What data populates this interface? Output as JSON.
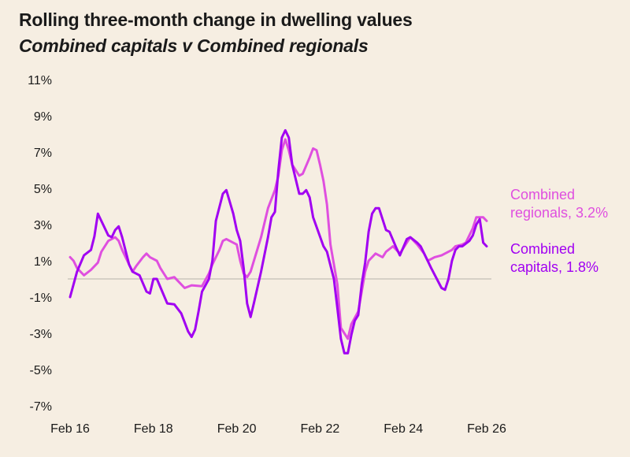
{
  "chart_data": {
    "type": "line",
    "title": "Rolling three-month change in dwelling values",
    "subtitle": "Combined capitals v Combined regionals",
    "xlabel": "",
    "ylabel": "",
    "ylim": [
      -7,
      11
    ],
    "xlim": [
      "2016-02",
      "2026-02"
    ],
    "y_ticks": [
      "11%",
      "9%",
      "7%",
      "5%",
      "3%",
      "1%",
      "-1%",
      "-3%",
      "-5%",
      "-7%"
    ],
    "y_tick_values": [
      11,
      9,
      7,
      5,
      3,
      1,
      -1,
      -3,
      -5,
      -7
    ],
    "x_ticks": [
      "Feb 16",
      "Feb 18",
      "Feb 20",
      "Feb 22",
      "Feb 24",
      "Feb 26"
    ],
    "x_tick_values": [
      "2016-02",
      "2018-02",
      "2020-02",
      "2022-02",
      "2024-02",
      "2026-02"
    ],
    "zero_line": true,
    "grid": false,
    "legend_placement": "right (direct labels)",
    "series": [
      {
        "name": "Combined regionals",
        "label_line1": "Combined",
        "label_line2": "regionals, 3.2%",
        "color": "#df4fdf",
        "points": [
          [
            "2016-02",
            1.2
          ],
          [
            "2016-03",
            1.0
          ],
          [
            "2016-04",
            0.6
          ],
          [
            "2016-06",
            0.2
          ],
          [
            "2016-08",
            0.5
          ],
          [
            "2016-10",
            0.9
          ],
          [
            "2016-11",
            1.5
          ],
          [
            "2017-01",
            2.1
          ],
          [
            "2017-03",
            2.3
          ],
          [
            "2017-04",
            2.1
          ],
          [
            "2017-05",
            1.6
          ],
          [
            "2017-07",
            0.8
          ],
          [
            "2017-08",
            0.4
          ],
          [
            "2017-09",
            0.7
          ],
          [
            "2017-11",
            1.2
          ],
          [
            "2017-12",
            1.4
          ],
          [
            "2018-01",
            1.2
          ],
          [
            "2018-03",
            1.0
          ],
          [
            "2018-04",
            0.6
          ],
          [
            "2018-06",
            0.0
          ],
          [
            "2018-08",
            0.1
          ],
          [
            "2018-09",
            -0.1
          ],
          [
            "2018-11",
            -0.5
          ],
          [
            "2019-01",
            -0.35
          ],
          [
            "2019-04",
            -0.4
          ],
          [
            "2019-06",
            0.3
          ],
          [
            "2019-07",
            0.8
          ],
          [
            "2019-09",
            1.6
          ],
          [
            "2019-10",
            2.1
          ],
          [
            "2019-11",
            2.2
          ],
          [
            "2020-02",
            1.9
          ],
          [
            "2020-03",
            1.0
          ],
          [
            "2020-04",
            0.3
          ],
          [
            "2020-05",
            0.1
          ],
          [
            "2020-06",
            0.4
          ],
          [
            "2020-09",
            2.3
          ],
          [
            "2020-11",
            3.9
          ],
          [
            "2021-01",
            4.9
          ],
          [
            "2021-02",
            5.7
          ],
          [
            "2021-03",
            7.1
          ],
          [
            "2021-04",
            7.7
          ],
          [
            "2021-05",
            7.1
          ],
          [
            "2021-06",
            6.3
          ],
          [
            "2021-08",
            5.7
          ],
          [
            "2021-09",
            5.8
          ],
          [
            "2021-11",
            6.7
          ],
          [
            "2021-12",
            7.2
          ],
          [
            "2022-01",
            7.1
          ],
          [
            "2022-02",
            6.3
          ],
          [
            "2022-03",
            5.4
          ],
          [
            "2022-04",
            4.1
          ],
          [
            "2022-05",
            1.9
          ],
          [
            "2022-07",
            -0.3
          ],
          [
            "2022-08",
            -2.7
          ],
          [
            "2022-10",
            -3.3
          ],
          [
            "2022-11",
            -2.5
          ],
          [
            "2023-01",
            -1.8
          ],
          [
            "2023-02",
            -0.7
          ],
          [
            "2023-03",
            0.4
          ],
          [
            "2023-04",
            1.0
          ],
          [
            "2023-06",
            1.4
          ],
          [
            "2023-08",
            1.2
          ],
          [
            "2023-09",
            1.5
          ],
          [
            "2023-11",
            1.8
          ],
          [
            "2024-01",
            1.4
          ],
          [
            "2024-03",
            2.0
          ],
          [
            "2024-04",
            2.3
          ],
          [
            "2024-06",
            1.9
          ],
          [
            "2024-08",
            1.4
          ],
          [
            "2024-09",
            1.0
          ],
          [
            "2024-11",
            1.2
          ],
          [
            "2025-01",
            1.3
          ],
          [
            "2025-04",
            1.6
          ],
          [
            "2025-05",
            1.8
          ],
          [
            "2025-07",
            1.9
          ],
          [
            "2025-08",
            2.0
          ],
          [
            "2025-10",
            2.8
          ],
          [
            "2025-11",
            3.4
          ],
          [
            "2026-01",
            3.4
          ],
          [
            "2026-02",
            3.2
          ]
        ]
      },
      {
        "name": "Combined capitals",
        "label_line1": "Combined",
        "label_line2": "capitals, 1.8%",
        "color": "#a100f2",
        "points": [
          [
            "2016-02",
            -1.0
          ],
          [
            "2016-04",
            0.4
          ],
          [
            "2016-06",
            1.3
          ],
          [
            "2016-08",
            1.6
          ],
          [
            "2016-09",
            2.35
          ],
          [
            "2016-10",
            3.6
          ],
          [
            "2016-11",
            3.2
          ],
          [
            "2017-01",
            2.4
          ],
          [
            "2017-02",
            2.3
          ],
          [
            "2017-03",
            2.7
          ],
          [
            "2017-04",
            2.9
          ],
          [
            "2017-05",
            2.3
          ],
          [
            "2017-07",
            0.8
          ],
          [
            "2017-08",
            0.4
          ],
          [
            "2017-10",
            0.2
          ],
          [
            "2017-12",
            -0.7
          ],
          [
            "2018-01",
            -0.8
          ],
          [
            "2018-02",
            0.0
          ],
          [
            "2018-03",
            0.0
          ],
          [
            "2018-06",
            -1.35
          ],
          [
            "2018-08",
            -1.4
          ],
          [
            "2018-10",
            -1.9
          ],
          [
            "2018-12",
            -2.9
          ],
          [
            "2019-01",
            -3.2
          ],
          [
            "2019-02",
            -2.8
          ],
          [
            "2019-03",
            -1.8
          ],
          [
            "2019-04",
            -0.7
          ],
          [
            "2019-06",
            0.0
          ],
          [
            "2019-07",
            1.0
          ],
          [
            "2019-08",
            3.2
          ],
          [
            "2019-10",
            4.7
          ],
          [
            "2019-11",
            4.9
          ],
          [
            "2020-01",
            3.6
          ],
          [
            "2020-02",
            2.7
          ],
          [
            "2020-03",
            2.1
          ],
          [
            "2020-04",
            0.6
          ],
          [
            "2020-05",
            -1.35
          ],
          [
            "2020-06",
            -2.1
          ],
          [
            "2020-07",
            -1.3
          ],
          [
            "2020-09",
            0.4
          ],
          [
            "2020-11",
            2.3
          ],
          [
            "2020-12",
            3.4
          ],
          [
            "2021-01",
            3.7
          ],
          [
            "2021-02",
            6.0
          ],
          [
            "2021-03",
            7.8
          ],
          [
            "2021-04",
            8.2
          ],
          [
            "2021-05",
            7.8
          ],
          [
            "2021-06",
            6.3
          ],
          [
            "2021-08",
            4.7
          ],
          [
            "2021-09",
            4.7
          ],
          [
            "2021-10",
            4.9
          ],
          [
            "2021-11",
            4.5
          ],
          [
            "2021-12",
            3.4
          ],
          [
            "2022-03",
            1.8
          ],
          [
            "2022-04",
            1.5
          ],
          [
            "2022-06",
            0.0
          ],
          [
            "2022-07",
            -1.6
          ],
          [
            "2022-08",
            -3.3
          ],
          [
            "2022-09",
            -4.1
          ],
          [
            "2022-10",
            -4.1
          ],
          [
            "2022-11",
            -3.1
          ],
          [
            "2022-12",
            -2.3
          ],
          [
            "2023-01",
            -2.0
          ],
          [
            "2023-02",
            -0.3
          ],
          [
            "2023-03",
            0.9
          ],
          [
            "2023-04",
            2.6
          ],
          [
            "2023-05",
            3.6
          ],
          [
            "2023-06",
            3.9
          ],
          [
            "2023-07",
            3.9
          ],
          [
            "2023-09",
            2.7
          ],
          [
            "2023-10",
            2.6
          ],
          [
            "2023-12",
            1.7
          ],
          [
            "2024-01",
            1.3
          ],
          [
            "2024-03",
            2.2
          ],
          [
            "2024-04",
            2.3
          ],
          [
            "2024-06",
            2.0
          ],
          [
            "2024-07",
            1.8
          ],
          [
            "2024-09",
            1.0
          ],
          [
            "2024-10",
            0.6
          ],
          [
            "2025-01",
            -0.5
          ],
          [
            "2025-02",
            -0.6
          ],
          [
            "2025-03",
            0.0
          ],
          [
            "2025-04",
            1.0
          ],
          [
            "2025-05",
            1.6
          ],
          [
            "2025-06",
            1.8
          ],
          [
            "2025-07",
            1.8
          ],
          [
            "2025-09",
            2.1
          ],
          [
            "2025-10",
            2.4
          ],
          [
            "2025-11",
            3.0
          ],
          [
            "2025-12",
            3.3
          ],
          [
            "2026-01",
            2.0
          ],
          [
            "2026-02",
            1.8
          ]
        ]
      }
    ]
  }
}
